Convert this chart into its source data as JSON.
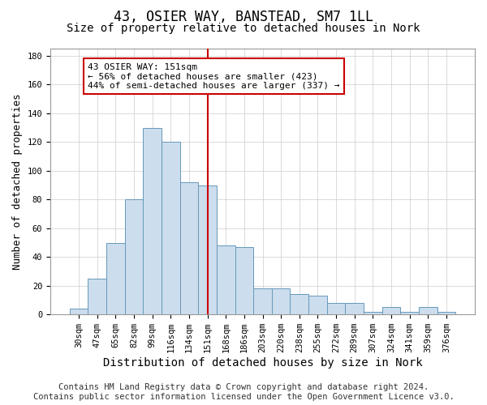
{
  "title": "43, OSIER WAY, BANSTEAD, SM7 1LL",
  "subtitle": "Size of property relative to detached houses in Nork",
  "xlabel": "Distribution of detached houses by size in Nork",
  "ylabel": "Number of detached properties",
  "categories": [
    "30sqm",
    "47sqm",
    "65sqm",
    "82sqm",
    "99sqm",
    "116sqm",
    "134sqm",
    "151sqm",
    "168sqm",
    "186sqm",
    "203sqm",
    "220sqm",
    "238sqm",
    "255sqm",
    "272sqm",
    "289sqm",
    "307sqm",
    "324sqm",
    "341sqm",
    "359sqm",
    "376sqm"
  ],
  "values": [
    4,
    25,
    50,
    80,
    130,
    120,
    92,
    90,
    48,
    47,
    18,
    18,
    14,
    13,
    8,
    8,
    2,
    5,
    2,
    5,
    2
  ],
  "bar_color": "#ccdded",
  "bar_edge_color": "#6699bb",
  "vline_x_index": 7,
  "vline_color": "#cc0000",
  "annotation_text": "43 OSIER WAY: 151sqm\n← 56% of detached houses are smaller (423)\n44% of semi-detached houses are larger (337) →",
  "annotation_box_color": "white",
  "annotation_box_edge_color": "#cc0000",
  "ylim": [
    0,
    185
  ],
  "yticks": [
    0,
    20,
    40,
    60,
    80,
    100,
    120,
    140,
    160,
    180
  ],
  "footer_line1": "Contains HM Land Registry data © Crown copyright and database right 2024.",
  "footer_line2": "Contains public sector information licensed under the Open Government Licence v3.0.",
  "title_fontsize": 12,
  "subtitle_fontsize": 10,
  "xlabel_fontsize": 10,
  "ylabel_fontsize": 9,
  "tick_fontsize": 7.5,
  "annotation_fontsize": 8,
  "footer_fontsize": 7.5,
  "bg_color": "#ffffff",
  "plot_bg_color": "#ffffff"
}
